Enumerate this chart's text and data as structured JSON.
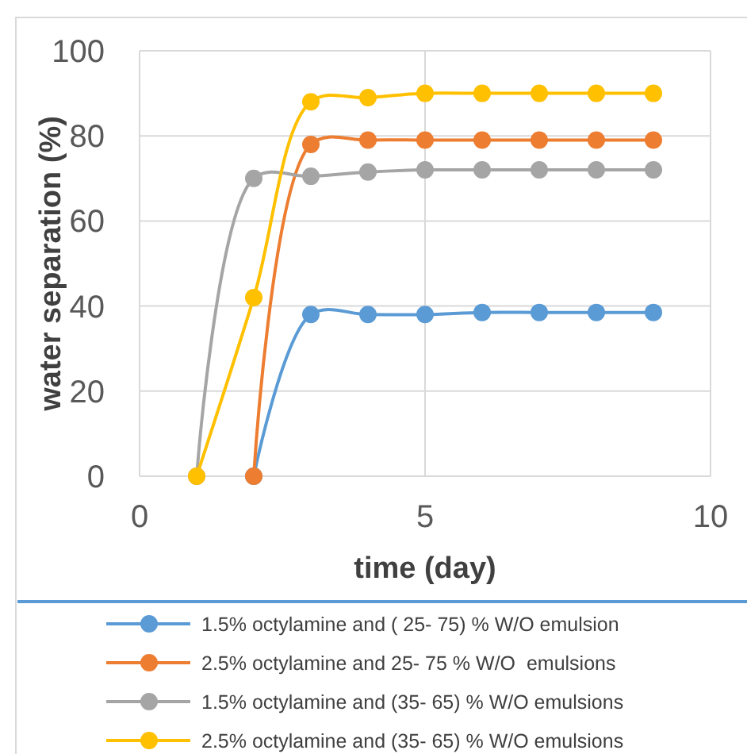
{
  "chart_data": {
    "type": "line",
    "xlabel": "time (day)",
    "ylabel": "water separation (%)",
    "xlim": [
      0,
      10
    ],
    "xticks": [
      0,
      5,
      10
    ],
    "ylim": [
      0,
      100
    ],
    "yticks": [
      0,
      20,
      40,
      60,
      80,
      100
    ],
    "grid": true,
    "legend": "bottom",
    "marker": "circle",
    "line_style": "solid",
    "series": [
      {
        "name": "1.5% octylamine and ( 25- 75) % W/O emulsion",
        "color": "#5b9bd5",
        "x": [
          2,
          3,
          4,
          5,
          6,
          7,
          8,
          9
        ],
        "values": [
          0,
          38,
          38,
          38,
          38.5,
          38.5,
          38.5,
          38.5
        ]
      },
      {
        "name": "2.5% octylamine and 25- 75 % W/O  emulsions",
        "color": "#ed7d31",
        "x": [
          2,
          3,
          4,
          5,
          6,
          7,
          8,
          9
        ],
        "values": [
          0,
          78,
          79,
          79,
          79,
          79,
          79,
          79
        ]
      },
      {
        "name": "1.5% octylamine and (35- 65) % W/O emulsions",
        "color": "#a5a5a5",
        "x": [
          1,
          2,
          3,
          4,
          5,
          6,
          7,
          8,
          9
        ],
        "values": [
          0,
          70,
          70.5,
          71.5,
          72,
          72,
          72,
          72,
          72
        ]
      },
      {
        "name": "2.5% octylamine and (35- 65) % W/O emulsions",
        "color": "#ffc000",
        "x": [
          1,
          2,
          3,
          4,
          5,
          6,
          7,
          8,
          9
        ],
        "values": [
          0,
          42,
          88,
          89,
          90,
          90,
          90,
          90,
          90
        ]
      }
    ]
  }
}
